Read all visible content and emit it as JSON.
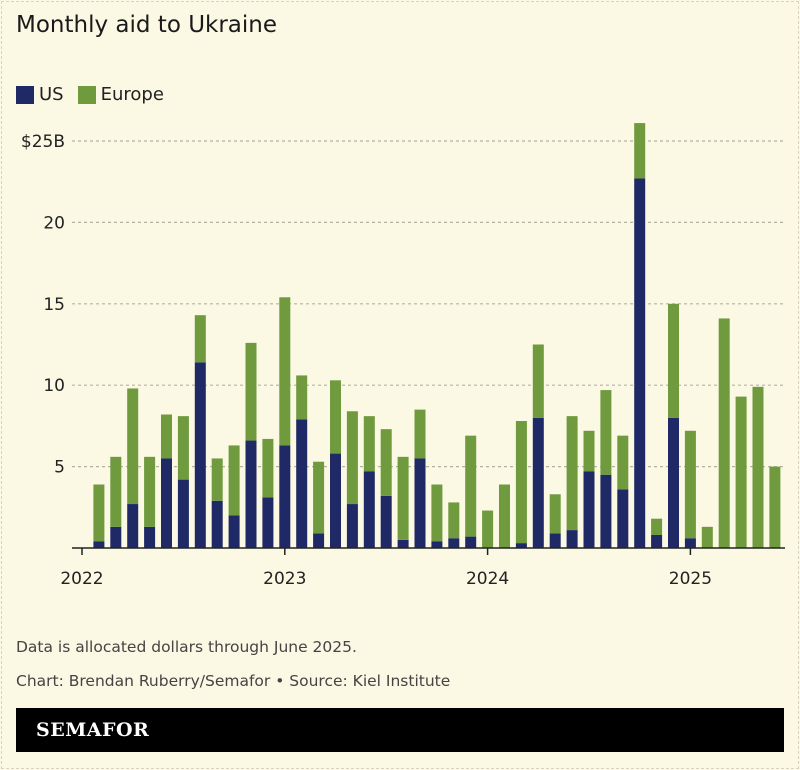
{
  "title": "Monthly aid to Ukraine",
  "colors": {
    "us": "#1f2966",
    "europe": "#6f9a3e",
    "background": "#fbf8e4"
  },
  "chart_data": {
    "type": "bar",
    "stacked": true,
    "title": "Monthly aid to Ukraine",
    "legend_position": "top-left",
    "grid": true,
    "ylim": [
      0,
      25
    ],
    "y_ticks": [
      {
        "value": 5,
        "label": "5"
      },
      {
        "value": 10,
        "label": "10"
      },
      {
        "value": 15,
        "label": "15"
      },
      {
        "value": 20,
        "label": "20"
      },
      {
        "value": 25,
        "label": "$25B"
      }
    ],
    "x_ticks": [
      {
        "month": "2022-01",
        "label": "2022"
      },
      {
        "month": "2023-01",
        "label": "2023"
      },
      {
        "month": "2024-01",
        "label": "2024"
      },
      {
        "month": "2025-01",
        "label": "2025"
      }
    ],
    "categories": [
      "2022-02",
      "2022-03",
      "2022-04",
      "2022-05",
      "2022-06",
      "2022-07",
      "2022-08",
      "2022-09",
      "2022-10",
      "2022-11",
      "2022-12",
      "2023-01",
      "2023-02",
      "2023-03",
      "2023-04",
      "2023-05",
      "2023-06",
      "2023-07",
      "2023-08",
      "2023-09",
      "2023-10",
      "2023-11",
      "2023-12",
      "2024-01",
      "2024-02",
      "2024-03",
      "2024-04",
      "2024-05",
      "2024-06",
      "2024-07",
      "2024-08",
      "2024-09",
      "2024-10",
      "2024-11",
      "2024-12",
      "2025-01",
      "2025-02",
      "2025-03",
      "2025-04",
      "2025-05",
      "2025-06"
    ],
    "series": [
      {
        "name": "US",
        "values": [
          0.4,
          1.3,
          2.7,
          1.3,
          5.5,
          4.2,
          11.4,
          2.9,
          2.0,
          6.6,
          3.1,
          6.3,
          7.9,
          0.9,
          5.8,
          2.7,
          4.7,
          3.2,
          0.5,
          5.5,
          0.4,
          0.6,
          0.7,
          0,
          0,
          0.3,
          8.0,
          0.9,
          1.1,
          4.7,
          4.5,
          3.6,
          22.7,
          0.8,
          8.0,
          0.6,
          0,
          0,
          0,
          0,
          0
        ]
      },
      {
        "name": "Europe",
        "values": [
          3.5,
          4.3,
          7.1,
          4.3,
          2.7,
          3.9,
          2.9,
          2.6,
          4.3,
          6.0,
          3.6,
          9.1,
          2.7,
          4.4,
          4.5,
          5.7,
          3.4,
          4.1,
          5.1,
          3.0,
          3.5,
          2.2,
          6.2,
          2.3,
          3.9,
          7.5,
          4.5,
          2.4,
          7.0,
          2.5,
          5.2,
          3.3,
          3.4,
          1.0,
          7.0,
          6.6,
          1.3,
          14.1,
          9.3,
          9.9,
          5.0
        ]
      }
    ]
  },
  "legend": {
    "us": "US",
    "europe": "Europe"
  },
  "footer": {
    "note": "Data is allocated dollars through June 2025.",
    "credit": "Chart: Brendan Ruberry/Semafor • Source: Kiel Institute",
    "logo": "SEMAFOR"
  }
}
